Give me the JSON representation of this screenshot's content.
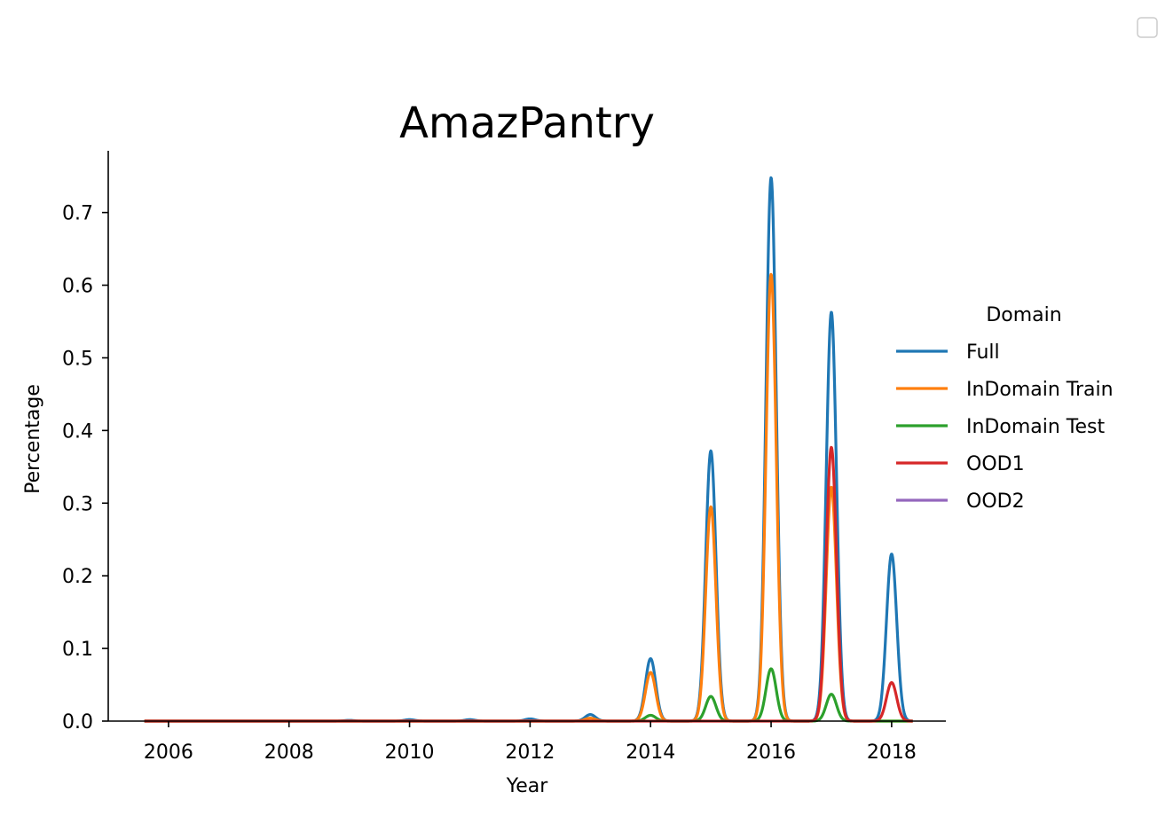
{
  "chart_data": {
    "type": "line",
    "title": "AmazPantry",
    "xlabel": "Year",
    "ylabel": "Percentage",
    "xlim": [
      2005,
      2018.9
    ],
    "ylim": [
      0,
      0.785
    ],
    "xticks": [
      2006,
      2008,
      2010,
      2012,
      2014,
      2016,
      2018
    ],
    "xtick_labels": [
      "2006",
      "2008",
      "2010",
      "2012",
      "2014",
      "2016",
      "2018"
    ],
    "yticks": [
      0.0,
      0.1,
      0.2,
      0.3,
      0.4,
      0.5,
      0.6,
      0.7
    ],
    "ytick_labels": [
      "0.0",
      "0.1",
      "0.2",
      "0.3",
      "0.4",
      "0.5",
      "0.6",
      "0.7"
    ],
    "grid": false,
    "legend": {
      "title": "Domain",
      "placement": "center-right, outside plot"
    },
    "series": [
      {
        "name": "Full",
        "color": "#1f77b4",
        "peaks": [
          [
            2009,
            0.001
          ],
          [
            2010,
            0.002
          ],
          [
            2011,
            0.002
          ],
          [
            2012,
            0.003
          ],
          [
            2013,
            0.009
          ],
          [
            2014,
            0.086
          ],
          [
            2015,
            0.372
          ],
          [
            2016,
            0.748
          ],
          [
            2017,
            0.563
          ],
          [
            2018,
            0.23
          ]
        ]
      },
      {
        "name": "InDomain Train",
        "color": "#ff7f0e",
        "peaks": [
          [
            2013,
            0.004
          ],
          [
            2014,
            0.067
          ],
          [
            2015,
            0.295
          ],
          [
            2016,
            0.615
          ],
          [
            2017,
            0.322
          ]
        ]
      },
      {
        "name": "InDomain Test",
        "color": "#2ca02c",
        "peaks": [
          [
            2014,
            0.008
          ],
          [
            2015,
            0.034
          ],
          [
            2016,
            0.072
          ],
          [
            2017,
            0.037
          ]
        ]
      },
      {
        "name": "OOD1",
        "color": "#d62728",
        "peaks": [
          [
            2017,
            0.377
          ],
          [
            2018,
            0.053
          ]
        ]
      },
      {
        "name": "OOD2",
        "color": "#9467bd",
        "peaks": []
      }
    ]
  }
}
